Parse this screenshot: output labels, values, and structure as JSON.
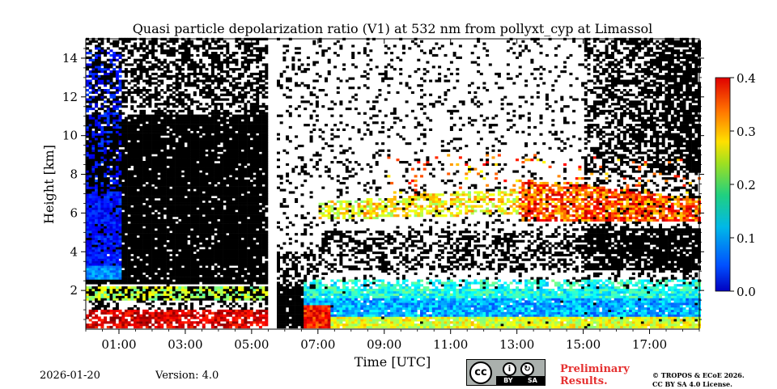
{
  "chart_data": {
    "type": "heatmap",
    "title": "Quasi particle depolarization ratio (V1) at 532 nm from pollyxt_cyp at Limassol",
    "xlabel": "Time [UTC]",
    "ylabel": "Height [km]",
    "xlim_hours": [
      0.0,
      18.5
    ],
    "ylim_km": [
      0.0,
      15.0
    ],
    "x_ticks": [
      {
        "label": "01:00",
        "value": 1
      },
      {
        "label": "03:00",
        "value": 3
      },
      {
        "label": "05:00",
        "value": 5
      },
      {
        "label": "07:00",
        "value": 7
      },
      {
        "label": "09:00",
        "value": 9
      },
      {
        "label": "11:00",
        "value": 11
      },
      {
        "label": "13:00",
        "value": 13
      },
      {
        "label": "15:00",
        "value": 15
      },
      {
        "label": "17:00",
        "value": 17
      }
    ],
    "y_ticks": [
      {
        "label": "2",
        "value": 2
      },
      {
        "label": "4",
        "value": 4
      },
      {
        "label": "6",
        "value": 6
      },
      {
        "label": "8",
        "value": 8
      },
      {
        "label": "10",
        "value": 10
      },
      {
        "label": "12",
        "value": 12
      },
      {
        "label": "14",
        "value": 14
      }
    ],
    "colorbar": {
      "range": [
        0.0,
        0.4
      ],
      "ticks": [
        {
          "label": "0.0",
          "value": 0.0
        },
        {
          "label": "0.1",
          "value": 0.1
        },
        {
          "label": "0.2",
          "value": 0.2
        },
        {
          "label": "0.3",
          "value": 0.3
        },
        {
          "label": "0.4",
          "value": 0.4
        }
      ],
      "colormap": "jet"
    },
    "data_gap_hours": [
      5.55,
      5.72
    ],
    "features": [
      {
        "name": "cirrus-depol",
        "t0": 0.0,
        "t1": 1.0,
        "h0": 3.0,
        "h1": 14.5,
        "value": 0.05
      },
      {
        "name": "noise-block-night",
        "t0": 1.0,
        "t1": 5.5,
        "h0": 2.3,
        "h1": 11.0,
        "value": null
      },
      {
        "name": "dust-layer-upper",
        "t0": 13.0,
        "t1": 18.5,
        "h0": 5.3,
        "h1": 8.0,
        "value": 0.32
      },
      {
        "name": "dust-layer-mid",
        "t0": 7.0,
        "t1": 13.0,
        "h0": 5.5,
        "h1": 6.8,
        "value": 0.2
      },
      {
        "name": "boundary-layer",
        "t0": 6.5,
        "t1": 18.5,
        "h0": 0.0,
        "h1": 2.5,
        "value": 0.1
      },
      {
        "name": "surface-layer-night",
        "t0": 0.0,
        "t1": 5.5,
        "h0": 0.0,
        "h1": 2.2,
        "value": 0.35
      }
    ]
  },
  "footer": {
    "date": "2026-01-20",
    "version": "Version: 4.0",
    "preliminary": [
      "Preliminary",
      "Results."
    ],
    "copyright": [
      "© TROPOS & ECoE 2026.",
      "CC BY SA 4.0 License."
    ],
    "license_badge": {
      "left": "BY",
      "right": "SA",
      "cc": "cc"
    }
  }
}
